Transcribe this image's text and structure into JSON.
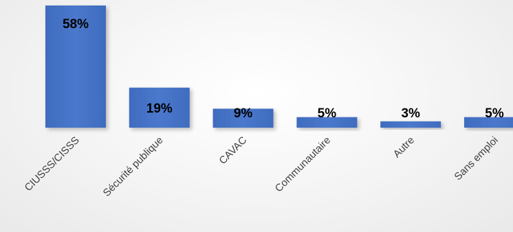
{
  "chart_data": {
    "type": "bar",
    "categories": [
      "CIUSSS/CISSS",
      "Sécurité publique",
      "CAVAC",
      "Communautaire",
      "Autre",
      "Sans emploi"
    ],
    "values": [
      58,
      19,
      9,
      5,
      3,
      5
    ],
    "data_labels": [
      "58%",
      "19%",
      "9%",
      "5%",
      "3%",
      "5%"
    ],
    "ylim": [
      0,
      58
    ],
    "grid": false,
    "legend": "none",
    "bar_color": "#4472C4"
  }
}
